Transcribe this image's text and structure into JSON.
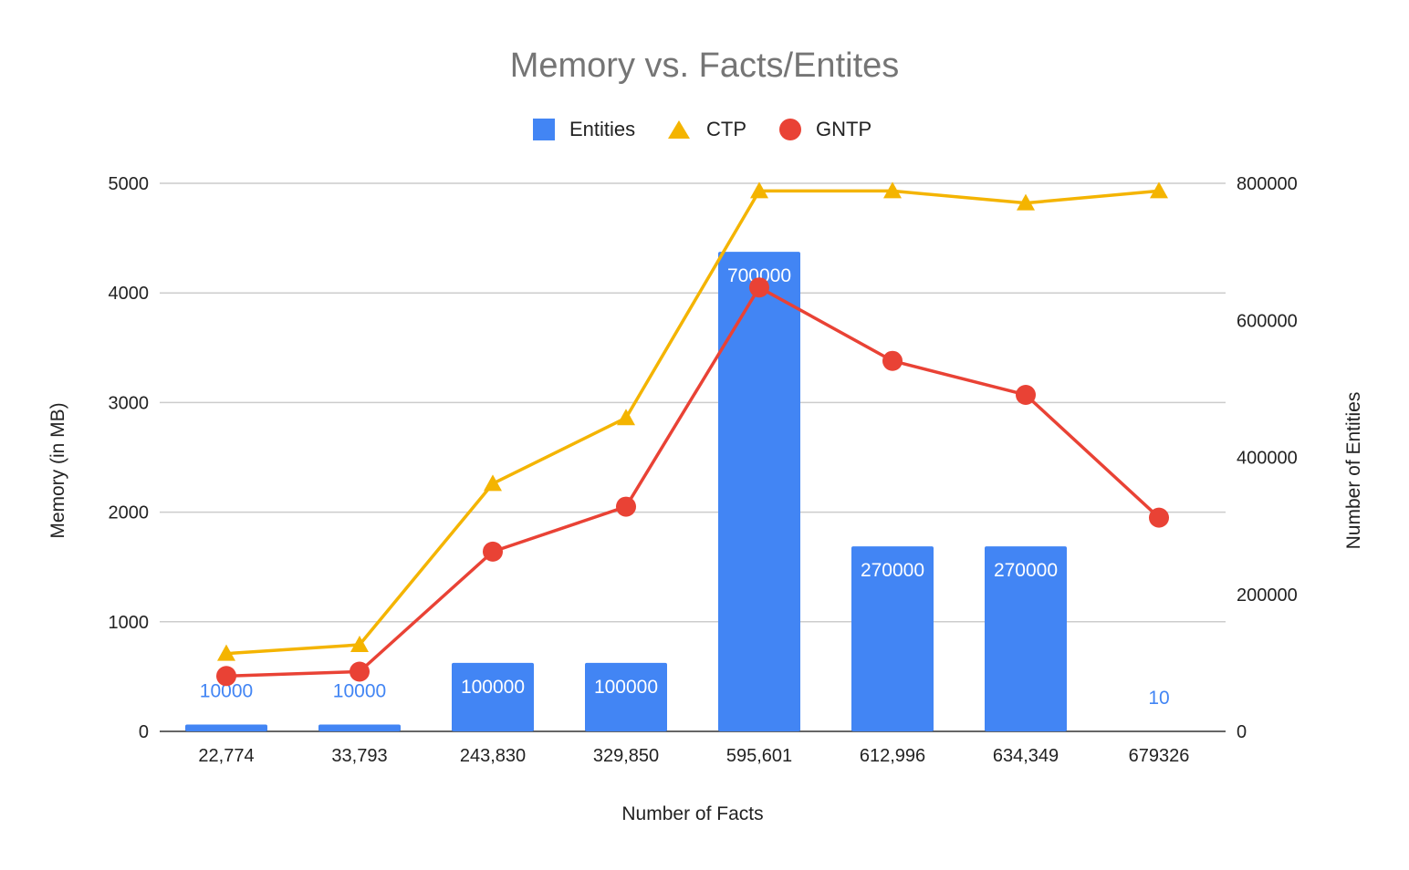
{
  "chart_data": {
    "type": "bar",
    "title": "Memory vs. Facts/Entites",
    "xlabel": "Number of Facts",
    "ylabel": "Memory (in MB)",
    "y2label": "Number of Entities",
    "categories": [
      "22,774",
      "33,793",
      "243,830",
      "329,850",
      "595,601",
      "612,996",
      "634,349",
      "679326"
    ],
    "ylim": [
      0,
      5000
    ],
    "y2lim": [
      0,
      800000
    ],
    "yticks": [
      "0",
      "1000",
      "2000",
      "3000",
      "4000",
      "5000"
    ],
    "y2ticks": [
      "0",
      "200000",
      "400000",
      "600000",
      "800000"
    ],
    "grid": true,
    "legend_position": "top",
    "series": [
      {
        "name": "Entities",
        "kind": "bar",
        "axis": "right",
        "color": "#4285F4",
        "values": [
          10000,
          10000,
          100000,
          100000,
          700000,
          270000,
          270000,
          10
        ],
        "labels": [
          "10000",
          "10000",
          "100000",
          "100000",
          "700000",
          "270000",
          "270000",
          "10"
        ]
      },
      {
        "name": "CTP",
        "kind": "line",
        "marker": "triangle",
        "axis": "left",
        "color": "#F4B400",
        "values": [
          710,
          790,
          2260,
          2860,
          4930,
          4930,
          4820,
          4930
        ]
      },
      {
        "name": "GNTP",
        "kind": "line",
        "marker": "circle",
        "axis": "left",
        "color": "#E94235",
        "values": [
          505,
          545,
          1640,
          2050,
          4050,
          3380,
          3070,
          1950
        ]
      }
    ]
  }
}
